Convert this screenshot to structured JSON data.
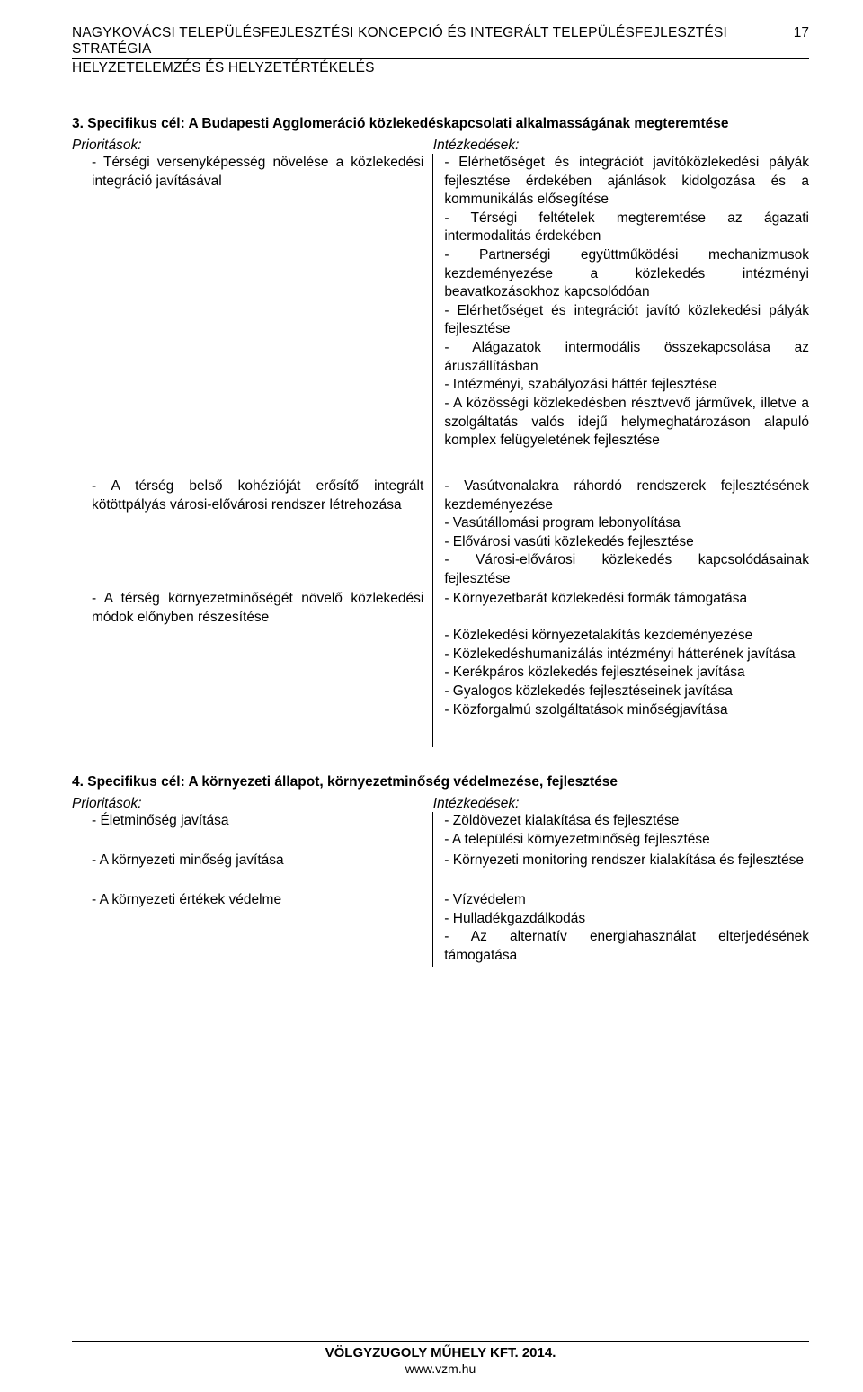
{
  "header": {
    "title": "NAGYKOVÁCSI TELEPÜLÉSFEJLESZTÉSI KONCEPCIÓ ÉS INTEGRÁLT TELEPÜLÉSFEJLESZTÉSI STRATÉGIA",
    "page_number": "17",
    "subtitle": "HELYZETELEMZÉS ÉS HELYZETÉRTÉKELÉS"
  },
  "section3": {
    "title": "3. Specifikus cél: A Budapesti Agglomeráció közlekedéskapcsolati alkalmasságának megteremtése",
    "prio_label": "Prioritások:",
    "int_label": "Intézkedések:",
    "rows": [
      {
        "left": "- Térségi versenyképesség növelése a közlekedési integráció javításával",
        "right": "- Elérhetőséget és integrációt javítóközlekedési pályák fejlesztése érdekében ajánlások kidolgozása és a kommunikálás elősegítése\n- Térségi feltételek megteremtése az ágazati intermodalitás érdekében\n- Partnerségi együttműködési mechanizmusok kezdeményezése a közlekedés intézményi beavatkozásokhoz kapcsolódóan\n- Elérhetőséget és integrációt javító közlekedési pályák fejlesztése\n- Alágazatok intermodális összekapcsolása az áruszállításban\n- Intézményi, szabályozási háttér fejlesztése\n- A közösségi közlekedésben résztvevő járművek, illetve a szolgáltatás valós idejű helymeghatározáson alapuló komplex felügyeletének fejlesztése"
      },
      {
        "left": "- A térség belső kohézióját erősítő integrált kötöttpályás városi-elővárosi rendszer létrehozása",
        "right": "- Vasútvonalakra ráhordó rendszerek fejlesztésének kezdeményezése\n- Vasútállomási program lebonyolítása\n- Elővárosi vasúti közlekedés fejlesztése\n- Városi-elővárosi közlekedés kapcsolódásainak fejlesztése"
      },
      {
        "left": "- A térség környezetminőségét növelő közlekedési módok előnyben részesítése",
        "right": "- Környezetbarát közlekedési formák támogatása\n\n- Közlekedési környezetalakítás kezdeményezése\n- Közlekedéshumanizálás intézményi hátterének javítása\n- Kerékpáros közlekedés fejlesztéseinek javítása\n- Gyalogos közlekedés fejlesztéseinek javítása\n- Közforgalmú szolgáltatások minőségjavítása"
      }
    ]
  },
  "section4": {
    "title": "4. Specifikus cél: A környezeti állapot, környezetminőség védelmezése, fejlesztése",
    "prio_label": "Prioritások:",
    "int_label": "Intézkedések:",
    "rows": [
      {
        "left": "- Életminőség javítása",
        "right": "- Zöldövezet kialakítása és fejlesztése\n- A települési környezetminőség fejlesztése"
      },
      {
        "left": "- A környezeti minőség javítása",
        "right": "- Környezeti monitoring rendszer kialakítása és fejlesztése"
      },
      {
        "left": "- A környezeti értékek védelme",
        "right": "- Vízvédelem\n- Hulladékgazdálkodás\n- Az alternatív energiahasználat elterjedésének támogatása"
      }
    ]
  },
  "footer": {
    "company": "VÖLGYZUGOLY MŰHELY KFT.   2014.",
    "site": "www.vzm.hu"
  }
}
